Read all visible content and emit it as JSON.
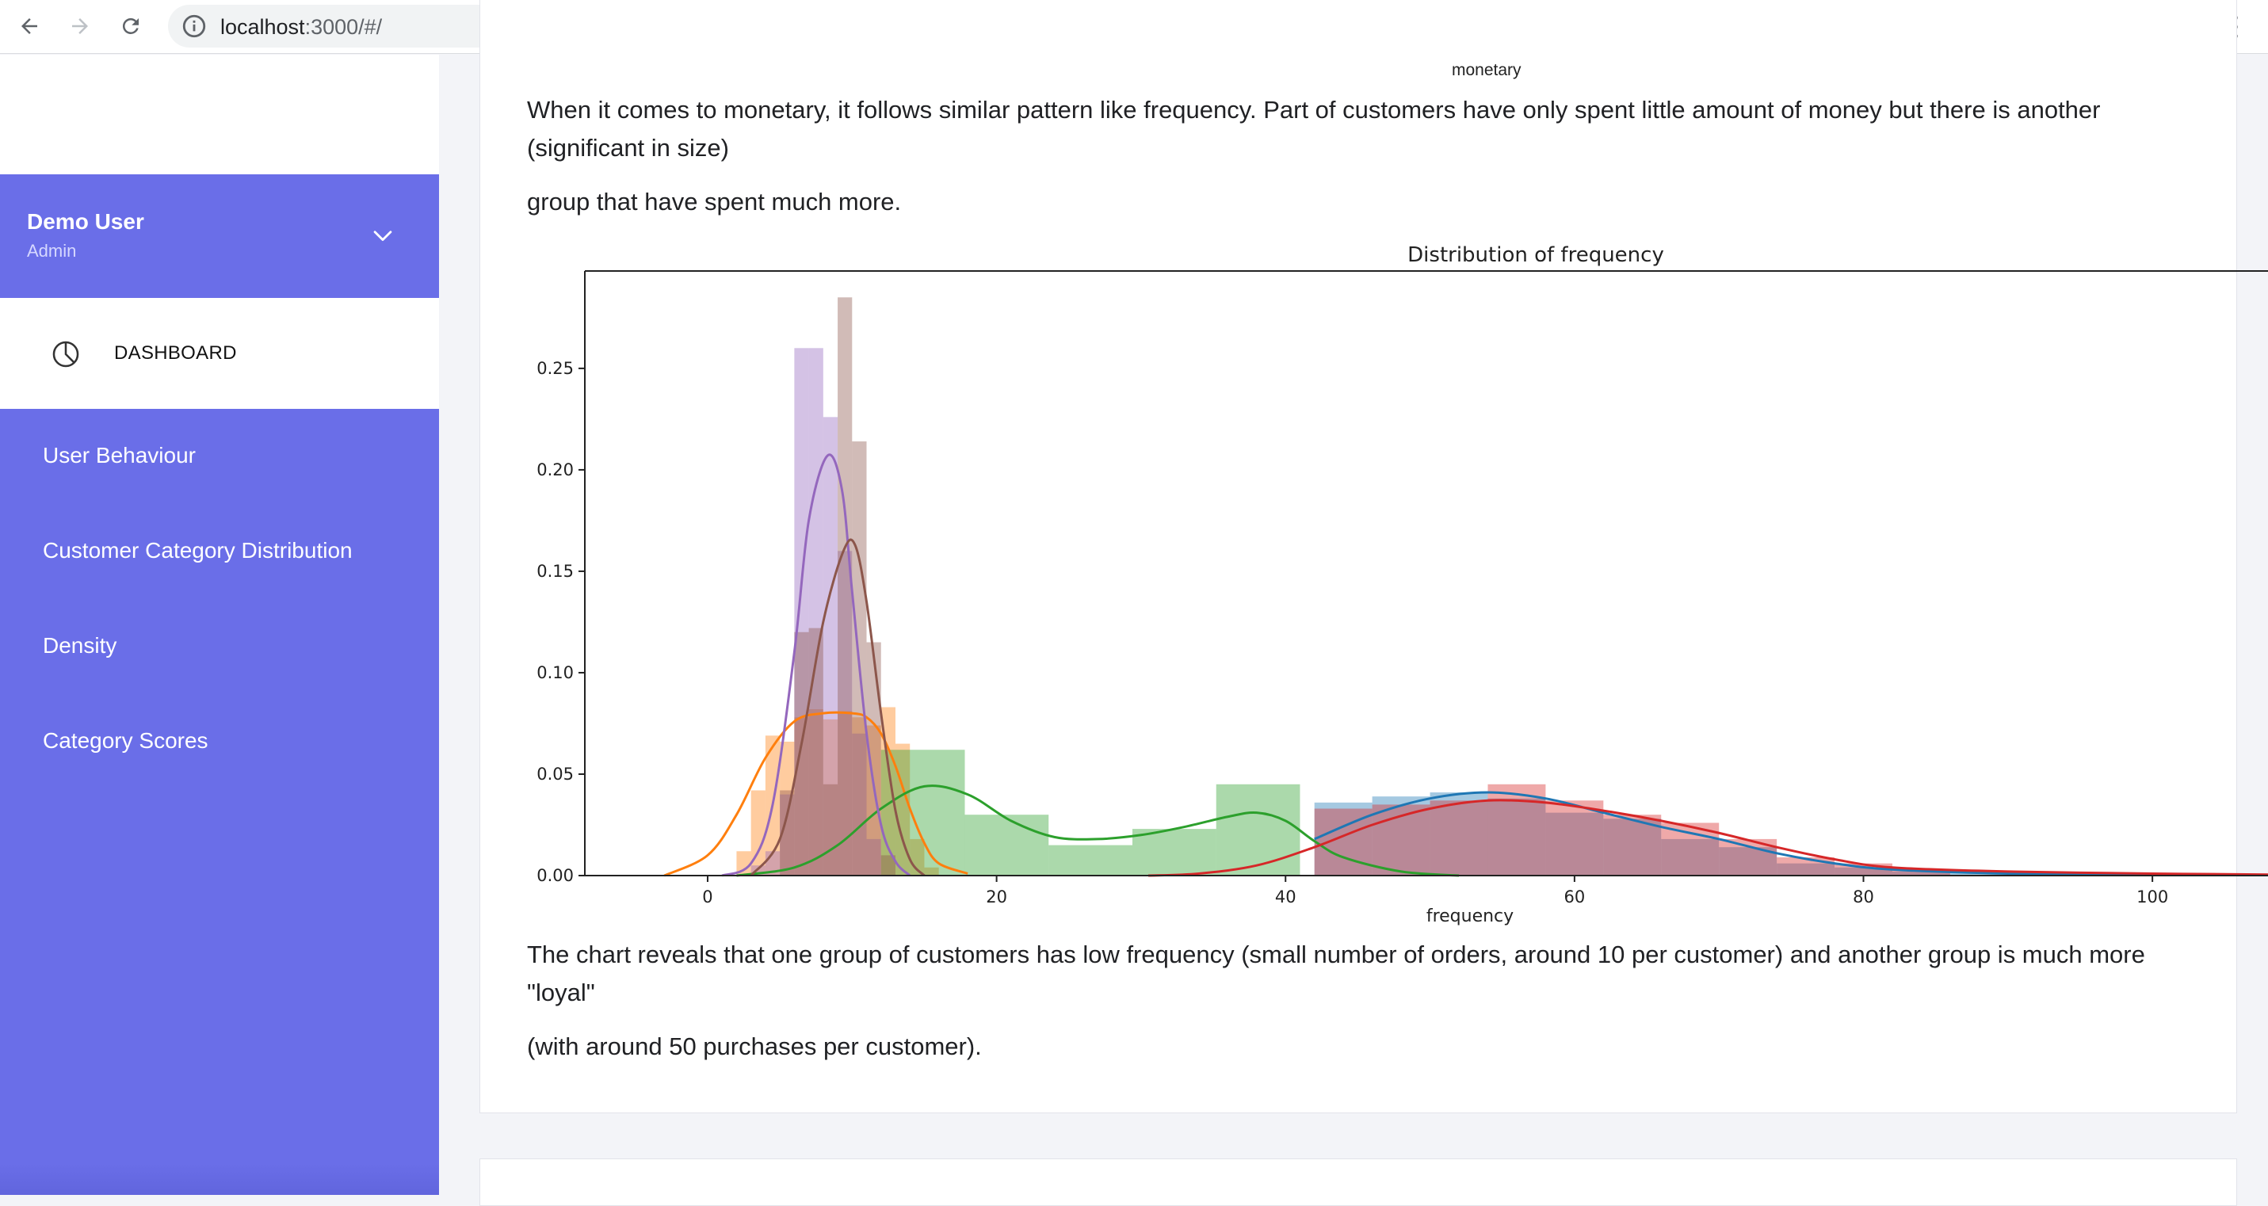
{
  "browser": {
    "url_host": "localhost",
    "url_path": ":3000/#/"
  },
  "sidebar": {
    "user": {
      "name": "Demo User",
      "role": "Admin"
    },
    "active_item": {
      "label": "DASHBOARD",
      "icon": "pie-chart-icon"
    },
    "items": [
      {
        "label": "User Behaviour"
      },
      {
        "label": "Customer Category Distribution"
      },
      {
        "label": "Density"
      },
      {
        "label": "Category Scores"
      }
    ]
  },
  "main": {
    "top_cut_label": "monetary",
    "paragraph1_line1": "When it comes to monetary, it follows similar pattern like frequency. Part of customers have only spent little amount of money but there is another (significant in size)",
    "paragraph1_line2": "group that have spent much more.",
    "paragraph2_line1": "The chart reveals that one group of customers has low frequency (small number of orders, around 10 per customer) and another group is much more \"loyal\"",
    "paragraph2_line2": "(with around 50 purchases per customer)."
  },
  "chart_data": {
    "type": "histogram-kde",
    "title": "Distribution of frequency",
    "xlabel": "frequency",
    "ylabel": "",
    "xlim": [
      -8.5,
      108
    ],
    "ylim": [
      0,
      0.298
    ],
    "xticks": [
      0,
      20,
      40,
      60,
      80,
      100
    ],
    "yticks": [
      0.0,
      0.05,
      0.1,
      0.15,
      0.2,
      0.25
    ],
    "grid": false,
    "series": [
      {
        "color": "#1f77b4",
        "bins": [
          [
            42,
            46,
            0.036
          ],
          [
            46,
            50,
            0.039
          ],
          [
            50,
            54,
            0.041
          ],
          [
            54,
            58,
            0.038
          ],
          [
            58,
            62,
            0.031
          ],
          [
            62,
            66,
            0.028
          ],
          [
            66,
            70,
            0.018
          ],
          [
            70,
            74,
            0.014
          ],
          [
            74,
            78,
            0.006
          ],
          [
            78,
            82,
            0.004
          ],
          [
            82,
            90,
            0.002
          ]
        ],
        "kde": [
          [
            42,
            0.018
          ],
          [
            46,
            0.03
          ],
          [
            50,
            0.038
          ],
          [
            54,
            0.041
          ],
          [
            58,
            0.038
          ],
          [
            62,
            0.031
          ],
          [
            66,
            0.024
          ],
          [
            70,
            0.018
          ],
          [
            74,
            0.011
          ],
          [
            78,
            0.006
          ],
          [
            82,
            0.003
          ],
          [
            90,
            0.001
          ],
          [
            100,
            0.0005
          ],
          [
            108,
            0.0002
          ]
        ]
      },
      {
        "color": "#ff7f0e",
        "bins": [
          [
            2,
            3,
            0.012
          ],
          [
            3,
            4,
            0.042
          ],
          [
            4,
            5,
            0.069
          ],
          [
            5,
            6,
            0.066
          ],
          [
            6,
            7,
            0.078
          ],
          [
            7,
            8,
            0.082
          ],
          [
            8,
            9,
            0.077
          ],
          [
            9,
            10,
            0.081
          ],
          [
            10,
            11,
            0.078
          ],
          [
            11,
            12,
            0.074
          ],
          [
            12,
            13,
            0.083
          ],
          [
            13,
            14,
            0.065
          ],
          [
            14,
            15,
            0.018
          ],
          [
            15,
            16,
            0.004
          ]
        ],
        "kde": [
          [
            -3,
            0.0
          ],
          [
            0,
            0.01
          ],
          [
            2,
            0.03
          ],
          [
            4,
            0.058
          ],
          [
            6,
            0.076
          ],
          [
            8,
            0.08
          ],
          [
            10,
            0.08
          ],
          [
            11,
            0.078
          ],
          [
            12,
            0.07
          ],
          [
            13,
            0.054
          ],
          [
            14,
            0.033
          ],
          [
            15,
            0.016
          ],
          [
            16,
            0.006
          ],
          [
            18,
            0.001
          ]
        ]
      },
      {
        "color": "#2ca02c",
        "bins": [
          [
            12,
            17.8,
            0.062
          ],
          [
            17.8,
            23.6,
            0.03
          ],
          [
            23.6,
            29.4,
            0.015
          ],
          [
            29.4,
            35.2,
            0.023
          ],
          [
            35.2,
            41,
            0.045
          ]
        ],
        "kde": [
          [
            2,
            0.0
          ],
          [
            6,
            0.004
          ],
          [
            9,
            0.015
          ],
          [
            12,
            0.033
          ],
          [
            15,
            0.044
          ],
          [
            18,
            0.04
          ],
          [
            21,
            0.027
          ],
          [
            24,
            0.019
          ],
          [
            27,
            0.018
          ],
          [
            30,
            0.02
          ],
          [
            33,
            0.024
          ],
          [
            36,
            0.029
          ],
          [
            38,
            0.031
          ],
          [
            40,
            0.027
          ],
          [
            42,
            0.017
          ],
          [
            44,
            0.009
          ],
          [
            48,
            0.002
          ],
          [
            52,
            0.0
          ]
        ]
      },
      {
        "color": "#d62728",
        "bins": [
          [
            42,
            46,
            0.033
          ],
          [
            46,
            50,
            0.035
          ],
          [
            50,
            54,
            0.037
          ],
          [
            54,
            58,
            0.045
          ],
          [
            58,
            62,
            0.037
          ],
          [
            62,
            66,
            0.03
          ],
          [
            66,
            70,
            0.026
          ],
          [
            70,
            74,
            0.018
          ],
          [
            74,
            78,
            0.009
          ],
          [
            78,
            82,
            0.006
          ],
          [
            82,
            86,
            0.003
          ]
        ],
        "kde": [
          [
            30.5,
            0.0
          ],
          [
            34,
            0.001
          ],
          [
            38,
            0.005
          ],
          [
            42,
            0.014
          ],
          [
            46,
            0.025
          ],
          [
            50,
            0.033
          ],
          [
            54,
            0.037
          ],
          [
            58,
            0.036
          ],
          [
            62,
            0.032
          ],
          [
            66,
            0.027
          ],
          [
            70,
            0.021
          ],
          [
            74,
            0.014
          ],
          [
            78,
            0.008
          ],
          [
            82,
            0.004
          ],
          [
            90,
            0.002
          ],
          [
            100,
            0.001
          ],
          [
            108,
            0.0005
          ]
        ]
      },
      {
        "color": "#9467bd",
        "bins": [
          [
            3,
            4,
            0.005
          ],
          [
            4,
            5,
            0.012
          ],
          [
            5,
            6,
            0.04
          ],
          [
            6,
            7,
            0.26
          ],
          [
            7,
            8,
            0.26
          ],
          [
            8,
            9,
            0.226
          ],
          [
            9,
            10,
            0.16
          ],
          [
            10,
            11,
            0.07
          ],
          [
            11,
            12,
            0.018
          ]
        ],
        "kde": [
          [
            1,
            0.0
          ],
          [
            3,
            0.006
          ],
          [
            4.5,
            0.035
          ],
          [
            6,
            0.11
          ],
          [
            7,
            0.175
          ],
          [
            8.3,
            0.207
          ],
          [
            9.3,
            0.19
          ],
          [
            10,
            0.14
          ],
          [
            11,
            0.07
          ],
          [
            12,
            0.025
          ],
          [
            13,
            0.007
          ],
          [
            14,
            0.0
          ]
        ]
      },
      {
        "color": "#8c564b",
        "bins": [
          [
            5,
            6,
            0.042
          ],
          [
            6,
            7,
            0.12
          ],
          [
            7,
            8,
            0.122
          ],
          [
            8,
            9,
            0.045
          ],
          [
            9,
            10,
            0.285
          ],
          [
            10,
            11,
            0.214
          ],
          [
            11,
            12,
            0.115
          ],
          [
            12,
            13,
            0.01
          ]
        ],
        "kde": [
          [
            3,
            0.0
          ],
          [
            5,
            0.018
          ],
          [
            6.5,
            0.065
          ],
          [
            8,
            0.125
          ],
          [
            9.4,
            0.16
          ],
          [
            10.2,
            0.163
          ],
          [
            11,
            0.135
          ],
          [
            12,
            0.08
          ],
          [
            13,
            0.032
          ],
          [
            14,
            0.008
          ],
          [
            15,
            0.0
          ]
        ]
      }
    ]
  }
}
